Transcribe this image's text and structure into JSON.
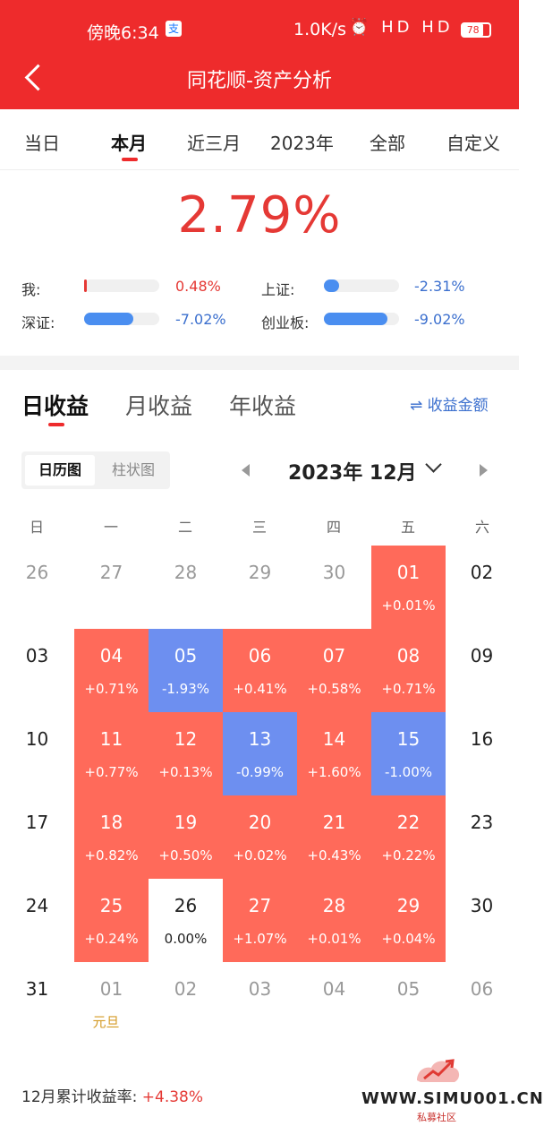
{
  "status": {
    "time": "傍晚6:34",
    "alipay_badge": "支",
    "speed": "1.0K/s",
    "icons": "⏰ HD HD ≋",
    "battery": "78"
  },
  "header": {
    "title": "同花顺-资产分析"
  },
  "period_tabs": [
    "当日",
    "本月",
    "近三月",
    "2023年",
    "全部",
    "自定义"
  ],
  "summary": {
    "return_pct": "2.79%"
  },
  "compare": [
    {
      "label": "我:",
      "value": "0.48%",
      "fill": 0.04,
      "color": "#e53935"
    },
    {
      "label": "上证:",
      "value": "-2.31%",
      "fill": 0.2,
      "color": "#4a8ef0"
    },
    {
      "label": "深证:",
      "value": "-7.02%",
      "fill": 0.65,
      "color": "#4a8ef0"
    },
    {
      "label": "创业板:",
      "value": "-9.02%",
      "fill": 0.85,
      "color": "#4a8ef0"
    }
  ],
  "section_tabs": [
    "日收益",
    "月收益",
    "年收益"
  ],
  "toggle": {
    "icon": "⇌",
    "label": "收益金额"
  },
  "view_options": [
    "日历图",
    "柱状图"
  ],
  "month_label": "2023年 12月",
  "weekdays": [
    "日",
    "一",
    "二",
    "三",
    "四",
    "五",
    "六"
  ],
  "calendar": [
    [
      {
        "d": "26",
        "out": true
      },
      {
        "d": "27",
        "out": true
      },
      {
        "d": "28",
        "out": true
      },
      {
        "d": "29",
        "out": true
      },
      {
        "d": "30",
        "out": true
      },
      {
        "d": "01",
        "p": "+0.01%",
        "t": "up"
      },
      {
        "d": "02"
      }
    ],
    [
      {
        "d": "03"
      },
      {
        "d": "04",
        "p": "+0.71%",
        "t": "up"
      },
      {
        "d": "05",
        "p": "-1.93%",
        "t": "down"
      },
      {
        "d": "06",
        "p": "+0.41%",
        "t": "up"
      },
      {
        "d": "07",
        "p": "+0.58%",
        "t": "up"
      },
      {
        "d": "08",
        "p": "+0.71%",
        "t": "up"
      },
      {
        "d": "09"
      }
    ],
    [
      {
        "d": "10"
      },
      {
        "d": "11",
        "p": "+0.77%",
        "t": "up"
      },
      {
        "d": "12",
        "p": "+0.13%",
        "t": "up"
      },
      {
        "d": "13",
        "p": "-0.99%",
        "t": "down"
      },
      {
        "d": "14",
        "p": "+1.60%",
        "t": "up"
      },
      {
        "d": "15",
        "p": "-1.00%",
        "t": "down"
      },
      {
        "d": "16"
      }
    ],
    [
      {
        "d": "17"
      },
      {
        "d": "18",
        "p": "+0.82%",
        "t": "up"
      },
      {
        "d": "19",
        "p": "+0.50%",
        "t": "up"
      },
      {
        "d": "20",
        "p": "+0.02%",
        "t": "up"
      },
      {
        "d": "21",
        "p": "+0.43%",
        "t": "up"
      },
      {
        "d": "22",
        "p": "+0.22%",
        "t": "up"
      },
      {
        "d": "23"
      }
    ],
    [
      {
        "d": "24"
      },
      {
        "d": "25",
        "p": "+0.24%",
        "t": "up"
      },
      {
        "d": "26",
        "p": "0.00%",
        "t": "flat"
      },
      {
        "d": "27",
        "p": "+1.07%",
        "t": "up"
      },
      {
        "d": "28",
        "p": "+0.01%",
        "t": "up"
      },
      {
        "d": "29",
        "p": "+0.04%",
        "t": "up"
      },
      {
        "d": "30"
      }
    ],
    [
      {
        "d": "31"
      },
      {
        "d": "01",
        "out": true,
        "holiday": "元旦"
      },
      {
        "d": "02",
        "out": true
      },
      {
        "d": "03",
        "out": true
      },
      {
        "d": "04",
        "out": true
      },
      {
        "d": "05",
        "out": true
      },
      {
        "d": "06",
        "out": true
      }
    ]
  ],
  "cumulative": {
    "label": "12月累计收益率:",
    "value": "+4.38%"
  },
  "watermark": {
    "text": "WWW.SIMU001.CN",
    "sub": "私募社区"
  }
}
